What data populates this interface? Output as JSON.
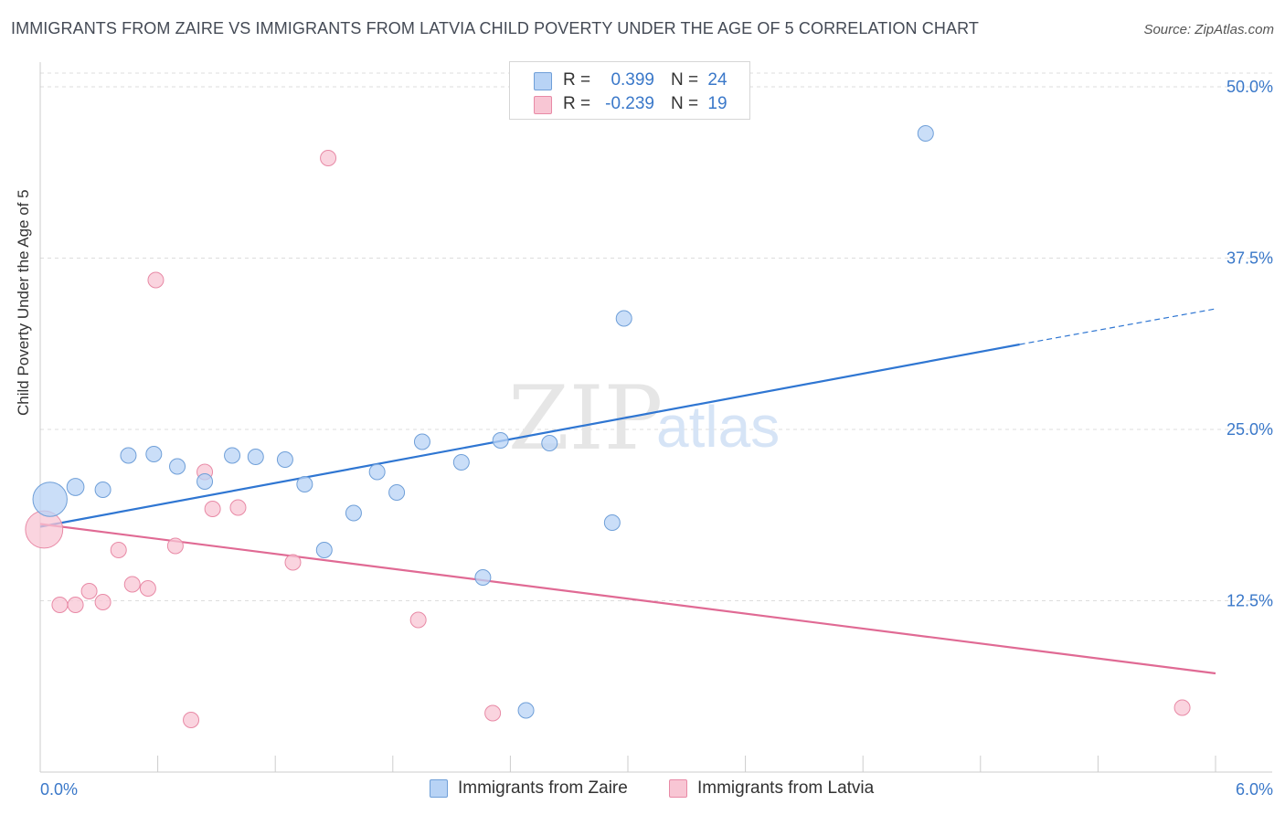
{
  "header": {
    "title": "IMMIGRANTS FROM ZAIRE VS IMMIGRANTS FROM LATVIA CHILD POVERTY UNDER THE AGE OF 5 CORRELATION CHART",
    "source": "Source: ZipAtlas.com"
  },
  "watermark": {
    "zip": "ZIP",
    "atlas": "atlas"
  },
  "legend": {
    "rows": [
      {
        "r_label": "R =",
        "r_value": "0.399",
        "n_label": "N =",
        "n_value": "24"
      },
      {
        "r_label": "R =",
        "r_value": "-0.239",
        "n_label": "N =",
        "n_value": "19"
      }
    ]
  },
  "colors": {
    "zaire_fill": "#b8d3f5",
    "zaire_stroke": "#6f9fd8",
    "zaire_line": "#2f76d2",
    "latvia_fill": "#f8c6d4",
    "latvia_stroke": "#e88aa6",
    "latvia_line": "#e06a94",
    "value_text": "#3a78c9"
  },
  "chart_data": {
    "type": "scatter",
    "title": "IMMIGRANTS FROM ZAIRE VS IMMIGRANTS FROM LATVIA CHILD POVERTY UNDER THE AGE OF 5 CORRELATION CHART",
    "xlabel": "",
    "ylabel": "Child Poverty Under the Age of 5",
    "xlim": [
      0,
      6
    ],
    "ylim": [
      0,
      51
    ],
    "x_tick_labels": [
      "0.0%",
      "6.0%"
    ],
    "y_ticks": [
      12.5,
      25.0,
      37.5,
      50.0
    ],
    "y_tick_labels": [
      "12.5%",
      "25.0%",
      "37.5%",
      "50.0%"
    ],
    "grid": true,
    "legend_position": "top-center",
    "series": [
      {
        "name": "Immigrants from Zaire",
        "r": 0.399,
        "n": 24,
        "trend": {
          "x0": 0.0,
          "y0": 17.9,
          "x1": 5.0,
          "y1": 31.2,
          "dash_to_x": 6.0,
          "dash_to_y": 33.8
        },
        "points": [
          {
            "x": 0.05,
            "y": 19.9,
            "size": 2.2
          },
          {
            "x": 0.18,
            "y": 20.8,
            "size": 1.1
          },
          {
            "x": 0.32,
            "y": 20.6,
            "size": 1.0
          },
          {
            "x": 0.45,
            "y": 23.1,
            "size": 1.0
          },
          {
            "x": 0.58,
            "y": 23.2,
            "size": 1.0
          },
          {
            "x": 0.7,
            "y": 22.3,
            "size": 1.0
          },
          {
            "x": 0.84,
            "y": 21.2,
            "size": 1.0
          },
          {
            "x": 0.98,
            "y": 23.1,
            "size": 1.0
          },
          {
            "x": 1.1,
            "y": 23.0,
            "size": 1.0
          },
          {
            "x": 1.25,
            "y": 22.8,
            "size": 1.0
          },
          {
            "x": 1.35,
            "y": 21.0,
            "size": 1.0
          },
          {
            "x": 1.45,
            "y": 16.2,
            "size": 1.0
          },
          {
            "x": 1.6,
            "y": 18.9,
            "size": 1.0
          },
          {
            "x": 1.72,
            "y": 21.9,
            "size": 1.0
          },
          {
            "x": 1.82,
            "y": 20.4,
            "size": 1.0
          },
          {
            "x": 1.95,
            "y": 24.1,
            "size": 1.0
          },
          {
            "x": 2.15,
            "y": 22.6,
            "size": 1.0
          },
          {
            "x": 2.26,
            "y": 14.2,
            "size": 1.0
          },
          {
            "x": 2.35,
            "y": 24.2,
            "size": 1.0
          },
          {
            "x": 2.48,
            "y": 4.5,
            "size": 1.0
          },
          {
            "x": 2.6,
            "y": 24.0,
            "size": 1.0
          },
          {
            "x": 2.92,
            "y": 18.2,
            "size": 1.0
          },
          {
            "x": 2.98,
            "y": 33.1,
            "size": 1.0
          },
          {
            "x": 4.52,
            "y": 46.6,
            "size": 1.0
          }
        ]
      },
      {
        "name": "Immigrants from Latvia",
        "r": -0.239,
        "n": 19,
        "trend": {
          "x0": 0.0,
          "y0": 18.1,
          "x1": 6.0,
          "y1": 7.2
        },
        "points": [
          {
            "x": 0.02,
            "y": 17.7,
            "size": 2.4
          },
          {
            "x": 0.1,
            "y": 12.2,
            "size": 1.0
          },
          {
            "x": 0.18,
            "y": 12.2,
            "size": 1.0
          },
          {
            "x": 0.25,
            "y": 13.2,
            "size": 1.0
          },
          {
            "x": 0.32,
            "y": 12.4,
            "size": 1.0
          },
          {
            "x": 0.4,
            "y": 16.2,
            "size": 1.0
          },
          {
            "x": 0.47,
            "y": 13.7,
            "size": 1.0
          },
          {
            "x": 0.55,
            "y": 13.4,
            "size": 1.0
          },
          {
            "x": 0.59,
            "y": 35.9,
            "size": 1.0
          },
          {
            "x": 0.69,
            "y": 16.5,
            "size": 1.0
          },
          {
            "x": 0.77,
            "y": 3.8,
            "size": 1.0
          },
          {
            "x": 0.84,
            "y": 21.9,
            "size": 1.0
          },
          {
            "x": 0.88,
            "y": 19.2,
            "size": 1.0
          },
          {
            "x": 1.01,
            "y": 19.3,
            "size": 1.0
          },
          {
            "x": 1.29,
            "y": 15.3,
            "size": 1.0
          },
          {
            "x": 1.47,
            "y": 44.8,
            "size": 1.0
          },
          {
            "x": 1.93,
            "y": 11.1,
            "size": 1.0
          },
          {
            "x": 2.31,
            "y": 4.3,
            "size": 1.0
          },
          {
            "x": 5.83,
            "y": 4.7,
            "size": 1.0
          }
        ]
      }
    ]
  }
}
